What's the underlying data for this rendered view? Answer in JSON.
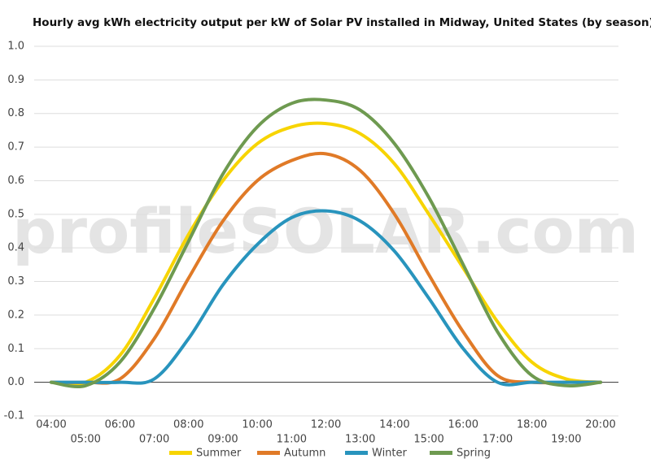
{
  "chart_data": {
    "type": "line",
    "title": "Hourly avg kWh electricity output per kW of Solar PV installed in Midway, United States (by season)",
    "watermark": "profileSOLAR.com",
    "categories": [
      "04:00",
      "05:00",
      "06:00",
      "07:00",
      "08:00",
      "09:00",
      "10:00",
      "11:00",
      "12:00",
      "13:00",
      "14:00",
      "15:00",
      "16:00",
      "17:00",
      "18:00",
      "19:00",
      "20:00"
    ],
    "series": [
      {
        "name": "Summer",
        "color": "#f7d400",
        "values": [
          0,
          0,
          0.08,
          0.25,
          0.44,
          0.6,
          0.71,
          0.76,
          0.77,
          0.74,
          0.65,
          0.5,
          0.34,
          0.18,
          0.06,
          0.01,
          0
        ]
      },
      {
        "name": "Autumn",
        "color": "#e07a27",
        "values": [
          0,
          0,
          0.01,
          0.13,
          0.31,
          0.48,
          0.6,
          0.66,
          0.68,
          0.63,
          0.5,
          0.32,
          0.15,
          0.02,
          0,
          0,
          0
        ]
      },
      {
        "name": "Winter",
        "color": "#2894bd",
        "values": [
          0,
          0,
          0,
          0.01,
          0.13,
          0.29,
          0.41,
          0.49,
          0.51,
          0.48,
          0.39,
          0.25,
          0.1,
          0,
          0,
          0,
          0
        ]
      },
      {
        "name": "Spring",
        "color": "#6e9a50",
        "values": [
          0,
          -0.01,
          0.06,
          0.22,
          0.42,
          0.62,
          0.76,
          0.83,
          0.84,
          0.81,
          0.71,
          0.55,
          0.35,
          0.15,
          0.02,
          -0.01,
          0
        ]
      }
    ],
    "ylim": [
      -0.1,
      1.0
    ],
    "yticks": [
      -0.1,
      {
        "value": 0,
        "label": "0.0"
      },
      0.1,
      0.2,
      0.3,
      0.4,
      0.5,
      0.6,
      0.7,
      0.8,
      0.9,
      {
        "value": 1,
        "label": "1.0"
      }
    ],
    "grid": true
  }
}
